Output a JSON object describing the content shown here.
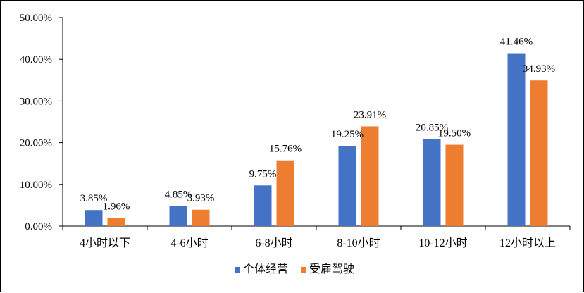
{
  "chart_data": {
    "type": "bar",
    "categories": [
      "4小时以下",
      "4-6小时",
      "6-8小时",
      "8-10小时",
      "10-12小时",
      "12小时以上"
    ],
    "series": [
      {
        "name": "个体经营",
        "values": [
          3.85,
          4.85,
          9.75,
          19.25,
          20.85,
          41.46
        ],
        "labels": [
          "3.85%",
          "4.85%",
          "9.75%",
          "19.25%",
          "20.85%",
          "41.46%"
        ],
        "color": "#4472C4"
      },
      {
        "name": "受雇驾驶",
        "values": [
          1.96,
          3.93,
          15.76,
          23.91,
          19.5,
          34.93
        ],
        "labels": [
          "1.96%",
          "3.93%",
          "15.76%",
          "23.91%",
          "19.50%",
          "34.93%"
        ],
        "color": "#ED7D31"
      }
    ],
    "y_ticks": [
      "0.00%",
      "10.00%",
      "20.00%",
      "30.00%",
      "40.00%",
      "50.00%"
    ],
    "ylim": [
      0,
      50
    ],
    "grid": false,
    "legend_position": "bottom",
    "title": "",
    "xlabel": "",
    "ylabel": ""
  }
}
